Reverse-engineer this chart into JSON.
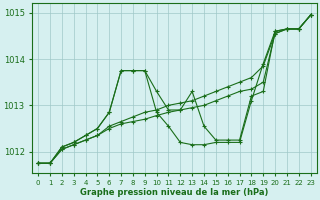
{
  "background_color": "#d6f0f0",
  "grid_color": "#a0c8c8",
  "line_color": "#1a6e1a",
  "marker_color": "#1a6e1a",
  "xlabel": "Graphe pression niveau de la mer (hPa)",
  "xlim": [
    -0.5,
    23.5
  ],
  "ylim": [
    1011.55,
    1015.2
  ],
  "yticks": [
    1012,
    1013,
    1014,
    1015
  ],
  "xticks": [
    0,
    1,
    2,
    3,
    4,
    5,
    6,
    7,
    8,
    9,
    10,
    11,
    12,
    13,
    14,
    15,
    16,
    17,
    18,
    19,
    20,
    21,
    22,
    23
  ],
  "lines": [
    {
      "x": [
        0,
        1,
        2,
        3,
        4,
        5,
        6,
        7,
        8,
        9,
        10,
        11,
        12,
        13,
        14,
        15,
        16,
        17,
        18,
        19,
        20,
        21,
        22,
        23
      ],
      "y": [
        1011.75,
        1011.75,
        1012.1,
        1012.2,
        1012.35,
        1012.5,
        1012.85,
        1013.75,
        1013.75,
        1013.75,
        1013.3,
        1012.9,
        1012.9,
        1013.3,
        1012.55,
        1012.25,
        1012.25,
        1012.25,
        1013.2,
        1013.3,
        1014.6,
        1014.65,
        1014.65,
        1014.95
      ]
    },
    {
      "x": [
        0,
        1,
        2,
        3,
        4,
        5,
        6,
        7,
        8,
        9,
        10,
        11,
        12,
        13,
        14,
        15,
        16,
        17,
        18,
        19,
        20,
        21,
        22,
        23
      ],
      "y": [
        1011.75,
        1011.75,
        1012.1,
        1012.2,
        1012.35,
        1012.5,
        1012.85,
        1013.75,
        1013.75,
        1013.75,
        1012.85,
        1012.55,
        1012.2,
        1012.15,
        1012.15,
        1012.2,
        1012.2,
        1012.2,
        1013.1,
        1013.9,
        1014.6,
        1014.65,
        1014.65,
        1014.95
      ]
    },
    {
      "x": [
        0,
        1,
        2,
        3,
        4,
        5,
        6,
        7,
        8,
        9,
        10,
        11,
        12,
        13,
        14,
        15,
        16,
        17,
        18,
        19,
        20,
        21,
        22,
        23
      ],
      "y": [
        1011.75,
        1011.75,
        1012.05,
        1012.15,
        1012.25,
        1012.35,
        1012.55,
        1012.65,
        1012.75,
        1012.85,
        1012.9,
        1013.0,
        1013.05,
        1013.1,
        1013.2,
        1013.3,
        1013.4,
        1013.5,
        1013.6,
        1013.85,
        1014.55,
        1014.65,
        1014.65,
        1014.95
      ]
    },
    {
      "x": [
        0,
        1,
        2,
        3,
        4,
        5,
        6,
        7,
        8,
        9,
        10,
        11,
        12,
        13,
        14,
        15,
        16,
        17,
        18,
        19,
        20,
        21,
        22,
        23
      ],
      "y": [
        1011.75,
        1011.75,
        1012.05,
        1012.15,
        1012.25,
        1012.35,
        1012.5,
        1012.6,
        1012.65,
        1012.7,
        1012.78,
        1012.85,
        1012.9,
        1012.95,
        1013.0,
        1013.1,
        1013.2,
        1013.3,
        1013.35,
        1013.5,
        1014.55,
        1014.65,
        1014.65,
        1014.95
      ]
    }
  ]
}
